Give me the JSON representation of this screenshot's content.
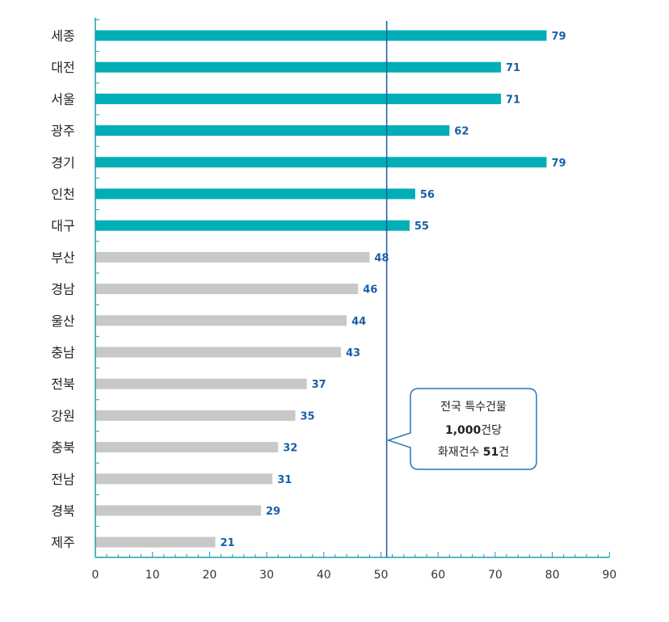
{
  "chart_data": {
    "type": "bar",
    "orientation": "horizontal",
    "categories": [
      "세종",
      "대전",
      "서울",
      "광주",
      "경기",
      "인천",
      "대구",
      "부산",
      "경남",
      "울산",
      "충남",
      "전북",
      "강원",
      "충북",
      "전남",
      "경북",
      "제주"
    ],
    "values": [
      79,
      71,
      71,
      62,
      79,
      56,
      55,
      48,
      46,
      44,
      43,
      37,
      35,
      32,
      31,
      29,
      21
    ],
    "highlight_count": 7,
    "xlim": [
      0,
      90
    ],
    "xticks": [
      0,
      10,
      20,
      30,
      40,
      50,
      60,
      70,
      80,
      90
    ],
    "reference_line": {
      "value": 51
    },
    "annotation": {
      "line1": "전국 특수건물",
      "line2_bold": "1,000",
      "line2_rest": "건당",
      "line3_prefix": "화재건수 ",
      "line3_bold": "51",
      "line3_suffix": "건"
    },
    "grid": false,
    "legend": "none"
  },
  "colors": {
    "highlight_bar": "#00aeb5",
    "normal_bar": "#c8c8c8",
    "axis": "#1a9fb4",
    "reference_line": "#1a58a5",
    "value_label": "#1a5fa8",
    "callout_border": "#2877b8"
  }
}
